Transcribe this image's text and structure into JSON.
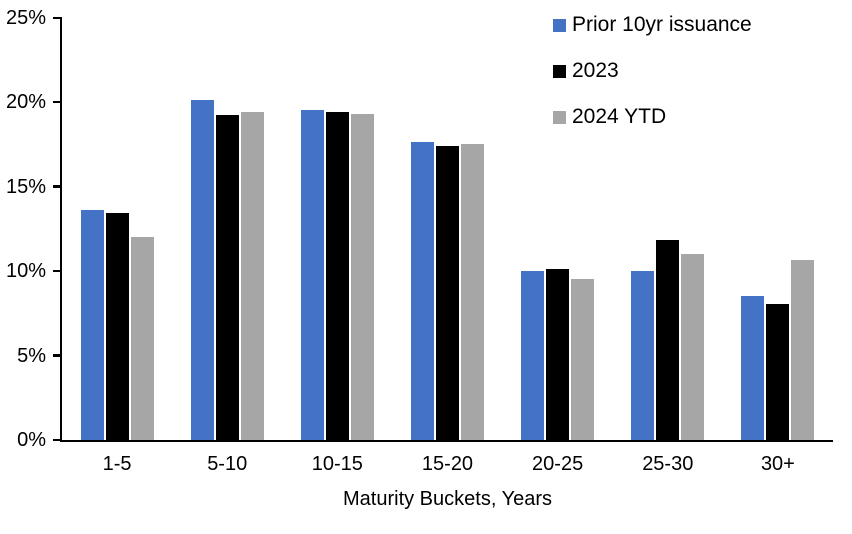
{
  "chart_data": {
    "type": "bar",
    "title": "",
    "xlabel": "Maturity Buckets, Years",
    "ylabel": "",
    "ylim": [
      0,
      25
    ],
    "y_ticks": [
      "0%",
      "5%",
      "10%",
      "15%",
      "20%",
      "25%"
    ],
    "y_tick_values": [
      0,
      5,
      10,
      15,
      20,
      25
    ],
    "grid": false,
    "legend_position": "top-right",
    "bar_border_color": "#FFFFFF",
    "categories": [
      "1-5",
      "5-10",
      "10-15",
      "15-20",
      "20-25",
      "25-30",
      "30+"
    ],
    "series": [
      {
        "name": "Prior 10yr issuance",
        "color": "#4472C4",
        "values": [
          13.7,
          20.2,
          19.6,
          17.7,
          10.1,
          10.1,
          8.6
        ]
      },
      {
        "name": "2023",
        "color": "#000000",
        "values": [
          13.5,
          19.3,
          19.5,
          17.5,
          10.2,
          11.9,
          8.1
        ]
      },
      {
        "name": "2024 YTD",
        "color": "#A6A6A6",
        "values": [
          12.1,
          19.5,
          19.4,
          17.6,
          9.6,
          11.1,
          10.7
        ]
      }
    ]
  }
}
